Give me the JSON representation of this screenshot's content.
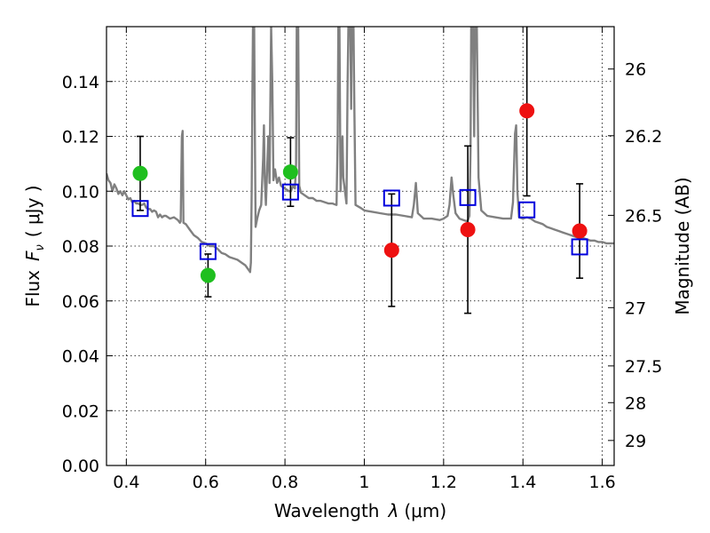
{
  "chart_data": {
    "type": "scatter",
    "xlabel_text": "Wavelength",
    "xlabel_symbol": "λ",
    "xlabel_unit": "(μm)",
    "ylabel_text": "Flux",
    "ylabel_symbol": "F",
    "ylabel_sub": "ν",
    "ylabel_unit": "( μJy )",
    "y2label": "Magnitude (AB)",
    "xlim": [
      0.35,
      1.63
    ],
    "ylim": [
      0.0,
      0.16
    ],
    "grid": true,
    "xticks": [
      {
        "value": 0.4,
        "label": "0.4"
      },
      {
        "value": 0.6,
        "label": "0.6"
      },
      {
        "value": 0.8,
        "label": "0.8"
      },
      {
        "value": 1.0,
        "label": "1"
      },
      {
        "value": 1.2,
        "label": "1.2"
      },
      {
        "value": 1.4,
        "label": "1.4"
      },
      {
        "value": 1.6,
        "label": "1.6"
      }
    ],
    "yticks": [
      {
        "value": 0.0,
        "label": "0.00"
      },
      {
        "value": 0.02,
        "label": "0.02"
      },
      {
        "value": 0.04,
        "label": "0.04"
      },
      {
        "value": 0.06,
        "label": "0.06"
      },
      {
        "value": 0.08,
        "label": "0.08"
      },
      {
        "value": 0.1,
        "label": "0.10"
      },
      {
        "value": 0.12,
        "label": "0.12"
      },
      {
        "value": 0.14,
        "label": "0.14"
      }
    ],
    "mag_ticks": [
      {
        "mag": 26,
        "label": "26"
      },
      {
        "mag": 26.2,
        "label": "26.2"
      },
      {
        "mag": 26.5,
        "label": "26.5"
      },
      {
        "mag": 27,
        "label": "27"
      },
      {
        "mag": 27.5,
        "label": "27.5"
      },
      {
        "mag": 28,
        "label": "28"
      },
      {
        "mag": 29,
        "label": "29"
      }
    ],
    "series": [
      {
        "name": "green-detections",
        "color": "#1fbf1f",
        "marker": "circle",
        "points": [
          {
            "x": 0.435,
            "y": 0.1065,
            "err": 0.0135
          },
          {
            "x": 0.606,
            "y": 0.0693,
            "err": 0.0078
          },
          {
            "x": 0.814,
            "y": 0.107,
            "err": 0.0125
          }
        ]
      },
      {
        "name": "red-detections",
        "color": "#ee1111",
        "marker": "circle",
        "points": [
          {
            "x": 1.069,
            "y": 0.0785,
            "err": 0.0205
          },
          {
            "x": 1.261,
            "y": 0.086,
            "err": 0.0305
          },
          {
            "x": 1.41,
            "y": 0.1293,
            "err": 0.031
          },
          {
            "x": 1.543,
            "y": 0.0855,
            "err": 0.0172
          }
        ]
      },
      {
        "name": "model-photometry",
        "color": "#0000dd",
        "marker": "square-open",
        "points": [
          {
            "x": 0.435,
            "y": 0.0937
          },
          {
            "x": 0.606,
            "y": 0.078
          },
          {
            "x": 0.814,
            "y": 0.0997
          },
          {
            "x": 1.069,
            "y": 0.0975
          },
          {
            "x": 1.261,
            "y": 0.0977
          },
          {
            "x": 1.41,
            "y": 0.0932
          },
          {
            "x": 1.543,
            "y": 0.0797
          }
        ]
      }
    ],
    "spectrum": {
      "name": "model-spectrum",
      "color": "#808080",
      "points": [
        [
          0.35,
          0.1065
        ],
        [
          0.355,
          0.104
        ],
        [
          0.36,
          0.103
        ],
        [
          0.365,
          0.1
        ],
        [
          0.37,
          0.1025
        ],
        [
          0.375,
          0.101
        ],
        [
          0.38,
          0.099
        ],
        [
          0.385,
          0.1
        ],
        [
          0.39,
          0.0985
        ],
        [
          0.395,
          0.1
        ],
        [
          0.4,
          0.0985
        ],
        [
          0.405,
          0.097
        ],
        [
          0.41,
          0.0975
        ],
        [
          0.415,
          0.096
        ],
        [
          0.42,
          0.0965
        ],
        [
          0.425,
          0.0955
        ],
        [
          0.43,
          0.0955
        ],
        [
          0.435,
          0.095
        ],
        [
          0.44,
          0.095
        ],
        [
          0.445,
          0.0955
        ],
        [
          0.45,
          0.094
        ],
        [
          0.455,
          0.0935
        ],
        [
          0.46,
          0.0935
        ],
        [
          0.465,
          0.0925
        ],
        [
          0.47,
          0.093
        ],
        [
          0.475,
          0.0925
        ],
        [
          0.48,
          0.0905
        ],
        [
          0.485,
          0.0915
        ],
        [
          0.49,
          0.0905
        ],
        [
          0.495,
          0.091
        ],
        [
          0.5,
          0.091
        ],
        [
          0.51,
          0.09
        ],
        [
          0.52,
          0.0905
        ],
        [
          0.53,
          0.0895
        ],
        [
          0.535,
          0.0885
        ],
        [
          0.537,
          0.089
        ],
        [
          0.54,
          0.12
        ],
        [
          0.542,
          0.122
        ],
        [
          0.544,
          0.0885
        ],
        [
          0.55,
          0.088
        ],
        [
          0.56,
          0.086
        ],
        [
          0.57,
          0.084
        ],
        [
          0.58,
          0.083
        ],
        [
          0.59,
          0.0815
        ],
        [
          0.6,
          0.081
        ],
        [
          0.61,
          0.08
        ],
        [
          0.62,
          0.08
        ],
        [
          0.63,
          0.079
        ],
        [
          0.64,
          0.0775
        ],
        [
          0.65,
          0.077
        ],
        [
          0.66,
          0.076
        ],
        [
          0.67,
          0.0755
        ],
        [
          0.68,
          0.075
        ],
        [
          0.69,
          0.074
        ],
        [
          0.7,
          0.073
        ],
        [
          0.705,
          0.072
        ],
        [
          0.71,
          0.071
        ],
        [
          0.712,
          0.0705
        ],
        [
          0.714,
          0.074
        ],
        [
          0.716,
          0.1
        ],
        [
          0.718,
          0.14
        ],
        [
          0.72,
          0.17
        ],
        [
          0.722,
          0.17
        ],
        [
          0.724,
          0.125
        ],
        [
          0.726,
          0.087
        ],
        [
          0.73,
          0.09
        ],
        [
          0.735,
          0.093
        ],
        [
          0.74,
          0.095
        ],
        [
          0.745,
          0.112
        ],
        [
          0.747,
          0.124
        ],
        [
          0.749,
          0.105
        ],
        [
          0.752,
          0.095
        ],
        [
          0.758,
          0.12
        ],
        [
          0.761,
          0.103
        ],
        [
          0.765,
          0.16
        ],
        [
          0.768,
          0.14
        ],
        [
          0.771,
          0.104
        ],
        [
          0.775,
          0.108
        ],
        [
          0.78,
          0.103
        ],
        [
          0.785,
          0.105
        ],
        [
          0.79,
          0.102
        ],
        [
          0.8,
          0.101
        ],
        [
          0.81,
          0.1
        ],
        [
          0.815,
          0.1
        ],
        [
          0.82,
          0.102
        ],
        [
          0.825,
          0.101
        ],
        [
          0.828,
          0.11
        ],
        [
          0.83,
          0.17
        ],
        [
          0.833,
          0.17
        ],
        [
          0.836,
          0.102
        ],
        [
          0.84,
          0.0995
        ],
        [
          0.85,
          0.0985
        ],
        [
          0.86,
          0.0975
        ],
        [
          0.87,
          0.0975
        ],
        [
          0.88,
          0.0965
        ],
        [
          0.89,
          0.0965
        ],
        [
          0.9,
          0.096
        ],
        [
          0.91,
          0.0955
        ],
        [
          0.92,
          0.0955
        ],
        [
          0.93,
          0.095
        ],
        [
          0.933,
          0.12
        ],
        [
          0.935,
          0.17
        ],
        [
          0.937,
          0.17
        ],
        [
          0.94,
          0.1
        ],
        [
          0.945,
          0.12
        ],
        [
          0.947,
          0.105
        ],
        [
          0.955,
          0.0955
        ],
        [
          0.958,
          0.14
        ],
        [
          0.961,
          0.17
        ],
        [
          0.964,
          0.17
        ],
        [
          0.967,
          0.13
        ],
        [
          0.969,
          0.17
        ],
        [
          0.972,
          0.17
        ],
        [
          0.975,
          0.13
        ],
        [
          0.978,
          0.095
        ],
        [
          0.99,
          0.094
        ],
        [
          1.0,
          0.093
        ],
        [
          1.02,
          0.0925
        ],
        [
          1.04,
          0.092
        ],
        [
          1.06,
          0.0915
        ],
        [
          1.08,
          0.0915
        ],
        [
          1.1,
          0.091
        ],
        [
          1.12,
          0.0905
        ],
        [
          1.125,
          0.095
        ],
        [
          1.13,
          0.103
        ],
        [
          1.135,
          0.092
        ],
        [
          1.15,
          0.09
        ],
        [
          1.17,
          0.09
        ],
        [
          1.19,
          0.0895
        ],
        [
          1.2,
          0.09
        ],
        [
          1.21,
          0.091
        ],
        [
          1.215,
          0.095
        ],
        [
          1.22,
          0.105
        ],
        [
          1.224,
          0.099
        ],
        [
          1.23,
          0.092
        ],
        [
          1.24,
          0.09
        ],
        [
          1.25,
          0.0895
        ],
        [
          1.26,
          0.089
        ],
        [
          1.265,
          0.091
        ],
        [
          1.268,
          0.115
        ],
        [
          1.27,
          0.17
        ],
        [
          1.273,
          0.17
        ],
        [
          1.277,
          0.12
        ],
        [
          1.28,
          0.17
        ],
        [
          1.283,
          0.17
        ],
        [
          1.288,
          0.105
        ],
        [
          1.295,
          0.093
        ],
        [
          1.31,
          0.091
        ],
        [
          1.33,
          0.0905
        ],
        [
          1.35,
          0.09
        ],
        [
          1.37,
          0.09
        ],
        [
          1.375,
          0.096
        ],
        [
          1.38,
          0.121
        ],
        [
          1.383,
          0.124
        ],
        [
          1.386,
          0.1
        ],
        [
          1.39,
          0.0905
        ],
        [
          1.4,
          0.09
        ],
        [
          1.41,
          0.0905
        ],
        [
          1.42,
          0.09
        ],
        [
          1.43,
          0.089
        ],
        [
          1.44,
          0.0885
        ],
        [
          1.45,
          0.088
        ],
        [
          1.46,
          0.087
        ],
        [
          1.47,
          0.0865
        ],
        [
          1.48,
          0.086
        ],
        [
          1.49,
          0.0855
        ],
        [
          1.5,
          0.085
        ],
        [
          1.51,
          0.0845
        ],
        [
          1.52,
          0.084
        ],
        [
          1.53,
          0.0835
        ],
        [
          1.54,
          0.083
        ],
        [
          1.55,
          0.083
        ],
        [
          1.56,
          0.0825
        ],
        [
          1.57,
          0.082
        ],
        [
          1.58,
          0.082
        ],
        [
          1.59,
          0.0815
        ],
        [
          1.6,
          0.0815
        ],
        [
          1.61,
          0.081
        ],
        [
          1.62,
          0.081
        ],
        [
          1.63,
          0.081
        ]
      ]
    }
  }
}
